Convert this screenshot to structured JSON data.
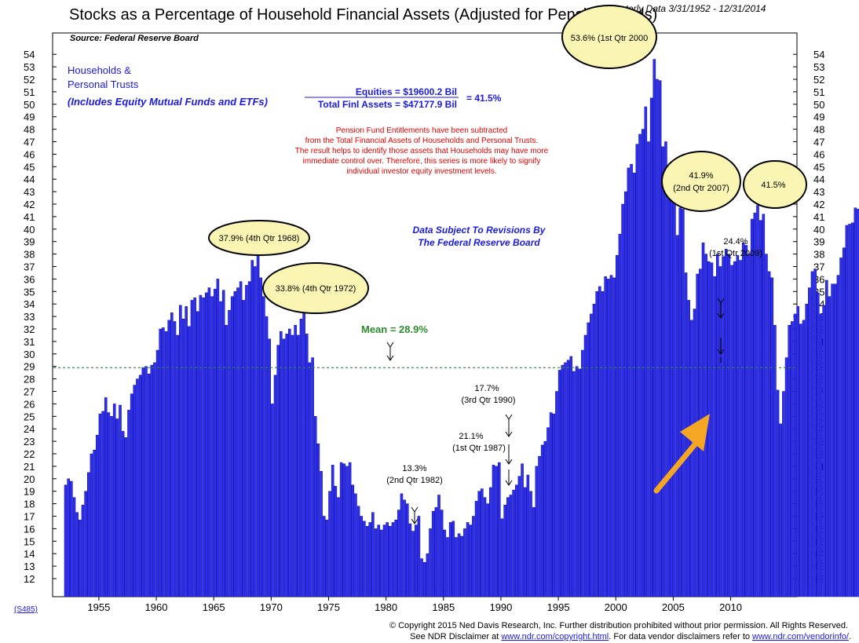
{
  "colors": {
    "bar_fill": "#2f2ff0",
    "bar_stroke": "#0a0aa0",
    "mean_line": "#2e8b2e",
    "bubble_fill": "#fbf5b4",
    "arrow": "#f5a623",
    "note_red": "#e00000",
    "text_blue": "#1a1adf"
  },
  "header": {
    "title": "Stocks as a Percentage of Household Financial Assets (Adjusted for Pension Funds)",
    "date_range": "Quarterly Data 3/31/1952 - 12/31/2014",
    "source": "Source: Federal Reserve Board"
  },
  "legend": {
    "line1": "Households &",
    "line2": "Personal Trusts",
    "line3": "(Includes Equity Mutual Funds and ETFs)"
  },
  "formula": {
    "numerator": "Equities = $19600.2 Bil",
    "denominator": "Total Finl Assets = $47177.9 Bil",
    "result": "= 41.5%"
  },
  "note": [
    "Pension Fund Entitlements have been subtracted",
    "from the Total Financial Assets of Households and Personal Trusts.",
    "The result helps to identify those assets that Households may have more",
    "immediate control over.  Therefore, this series is more likely to signify",
    "individual investor equity investment levels."
  ],
  "revision_note": [
    "Data Subject To Revisions By",
    "The Federal Reserve Board"
  ],
  "mean_label": "Mean = 28.9%",
  "annotations": {
    "peak1968": "37.9% (4th Qtr 1968)",
    "peak1972": "33.8% (4th Qtr 1972)",
    "peak2000": "53.6% (1st Qtr 2000",
    "peak2007_a": "41.9%",
    "peak2007_b": "(2nd Qtr 2007)",
    "last2014": "41.5%",
    "low1982_a": "13.3%",
    "low1982_b": "(2nd Qtr 1982)",
    "low1987_a": "21.1%",
    "low1987_b": "(1st Qtr 1987)",
    "low1990_a": "17.7%",
    "low1990_b": "(3rd Qtr 1990)",
    "low2009_a": "24.4%",
    "low2009_b": "(1st Qtr 2009)"
  },
  "series_code": "(S485)",
  "footer": {
    "line1": "© Copyright 2015 Ned Davis Research, Inc.  Further distribution prohibited without prior permission.  All Rights Reserved.",
    "line2_pre": "See NDR Disclaimer at ",
    "line2_link1": "www.ndr.com/copyright.html",
    "line2_mid": ".  For data vendor disclaimers refer to ",
    "line2_link2": "www.ndr.com/vendorinfo/",
    "line2_post": "."
  },
  "chart_data": {
    "type": "bar",
    "title": "Stocks as a Percentage of Household Financial Assets (Adjusted for Pension Funds)",
    "ylim": [
      11,
      55
    ],
    "y_ticks": [
      12,
      13,
      14,
      15,
      16,
      17,
      18,
      19,
      20,
      21,
      22,
      23,
      24,
      25,
      26,
      27,
      28,
      29,
      30,
      31,
      32,
      33,
      34,
      35,
      36,
      37,
      38,
      39,
      40,
      41,
      42,
      43,
      44,
      45,
      46,
      47,
      48,
      49,
      50,
      51,
      52,
      53,
      54
    ],
    "x_ticks": [
      "1955",
      "1960",
      "1965",
      "1970",
      "1975",
      "1980",
      "1985",
      "1990",
      "1995",
      "2000",
      "2005",
      "2010"
    ],
    "mean": 28.9,
    "grid": false,
    "series": [
      {
        "name": "Households & Personal Trusts",
        "x_start": "1952 Q1",
        "x_end": "2014 Q4",
        "frequency": "quarterly",
        "values": [
          19.5,
          20.0,
          19.8,
          18.5,
          17.3,
          16.7,
          17.9,
          19.0,
          20.5,
          22.0,
          22.3,
          23.5,
          25.2,
          25.4,
          26.5,
          25.3,
          25.0,
          26.0,
          24.8,
          25.9,
          23.8,
          23.3,
          25.5,
          26.8,
          27.5,
          28.0,
          28.3,
          28.9,
          29.0,
          28.4,
          29.1,
          29.3,
          30.3,
          32.0,
          32.1,
          31.8,
          32.7,
          33.3,
          32.6,
          31.5,
          33.9,
          32.8,
          33.8,
          32.2,
          34.3,
          34.5,
          33.4,
          34.7,
          34.5,
          34.9,
          35.3,
          34.6,
          35.2,
          36.0,
          34.2,
          35.1,
          32.3,
          33.5,
          34.6,
          35.0,
          35.3,
          35.8,
          34.3,
          35.5,
          35.8,
          37.5,
          37.0,
          37.9,
          36.1,
          34.6,
          33.0,
          31.2,
          26.0,
          28.3,
          30.7,
          31.8,
          31.2,
          31.6,
          32.0,
          31.5,
          32.3,
          31.5,
          32.8,
          33.8,
          31.6,
          29.3,
          29.7,
          25.0,
          22.8,
          20.6,
          17.0,
          16.7,
          19.0,
          21.1,
          19.4,
          18.5,
          21.3,
          21.2,
          21.0,
          21.3,
          19.5,
          18.8,
          17.8,
          17.0,
          16.6,
          16.2,
          16.5,
          17.3,
          16.0,
          16.3,
          15.9,
          16.3,
          16.5,
          16.2,
          16.5,
          16.7,
          17.5,
          18.8,
          18.3,
          18.0,
          16.4,
          15.8,
          16.3,
          17.0,
          13.6,
          13.3,
          14.0,
          16.0,
          17.4,
          17.7,
          18.7,
          17.5,
          15.9,
          15.3,
          16.5,
          16.6,
          15.3,
          15.6,
          15.4,
          16.0,
          16.5,
          16.3,
          17.0,
          18.2,
          19.0,
          19.2,
          18.5,
          18.0,
          19.3,
          21.1,
          21.0,
          21.3,
          16.8,
          17.9,
          18.5,
          18.7,
          19.1,
          19.5,
          20.2,
          21.2,
          19.3,
          20.3,
          19.0,
          17.7,
          21.0,
          21.8,
          22.7,
          23.0,
          24.1,
          25.3,
          25.2,
          27.0,
          28.7,
          29.1,
          29.3,
          29.5,
          29.8,
          28.6,
          29.0,
          28.8,
          30.3,
          31.5,
          32.5,
          33.2,
          34.0,
          35.0,
          35.4,
          35.0,
          36.2,
          36.0,
          36.3,
          36.1,
          37.9,
          39.6,
          42.0,
          43.0,
          44.9,
          45.2,
          44.5,
          46.8,
          47.6,
          48.0,
          49.8,
          47.0,
          50.5,
          53.6,
          52.0,
          51.9,
          46.6,
          47.0,
          44.6,
          43.2,
          42.1,
          39.5,
          41.7,
          41.6,
          36.5,
          34.3,
          32.7,
          33.6,
          36.4,
          36.8,
          38.9,
          38.0,
          37.4,
          37.3,
          36.2,
          38.0,
          37.0,
          37.8,
          38.4,
          38.0,
          37.1,
          37.4,
          37.9,
          37.5,
          38.9,
          38.7,
          38.0,
          40.8,
          41.3,
          41.9,
          40.7,
          41.2,
          38.0,
          36.6,
          36.1,
          32.3,
          27.1,
          24.4,
          27.0,
          29.7,
          32.3,
          32.6,
          33.2,
          33.8,
          32.4,
          32.7,
          34.0,
          35.3,
          36.6,
          36.8,
          34.9,
          33.2,
          33.9,
          35.9,
          34.6,
          35.6,
          35.6,
          36.3,
          37.7,
          38.5,
          40.3,
          40.4,
          40.5,
          41.7,
          41.6,
          41.5,
          41.6,
          41.5
        ]
      }
    ]
  }
}
